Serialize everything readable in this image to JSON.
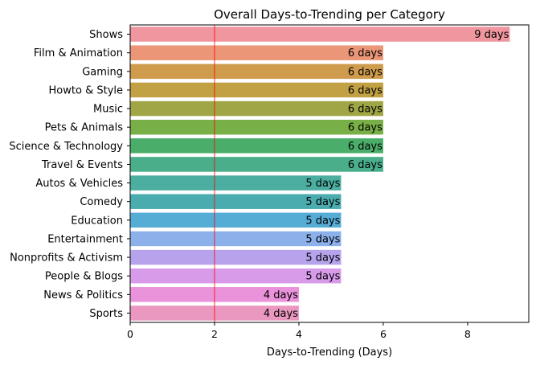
{
  "chart_data": {
    "type": "bar",
    "orientation": "horizontal",
    "title": "Overall Days-to-Trending per Category",
    "xlabel": "Days-to-Trending (Days)",
    "ylabel": "",
    "xlim": [
      0,
      9.45
    ],
    "xticks": [
      0,
      2,
      4,
      6,
      8
    ],
    "categories": [
      "Shows",
      "Film & Animation",
      "Gaming",
      "Howto & Style",
      "Music",
      "Pets & Animals",
      "Science & Technology",
      "Travel & Events",
      "Autos & Vehicles",
      "Comedy",
      "Education",
      "Entertainment",
      "Nonprofits & Activism",
      "People & Blogs",
      "News & Politics",
      "Sports"
    ],
    "values": [
      9,
      6,
      6,
      6,
      6,
      6,
      6,
      6,
      5,
      5,
      5,
      5,
      5,
      5,
      4,
      4
    ],
    "data_labels": [
      "9 days",
      "6 days",
      "6 days",
      "6 days",
      "6 days",
      "6 days",
      "6 days",
      "6 days",
      "5 days",
      "5 days",
      "5 days",
      "5 days",
      "5 days",
      "5 days",
      "4 days",
      "4 days"
    ],
    "colors": [
      "#f0969e",
      "#ea9677",
      "#cf9c4e",
      "#c2a144",
      "#a0a645",
      "#79af47",
      "#4aae6a",
      "#4aae8b",
      "#4baea0",
      "#4aacae",
      "#55acd4",
      "#8cb0ea",
      "#b6a3ec",
      "#d89bea",
      "#ea92da",
      "#ea98c0"
    ],
    "reference_line": {
      "x": 2,
      "color": "#ff0000"
    },
    "grid": false,
    "legend": "none"
  }
}
